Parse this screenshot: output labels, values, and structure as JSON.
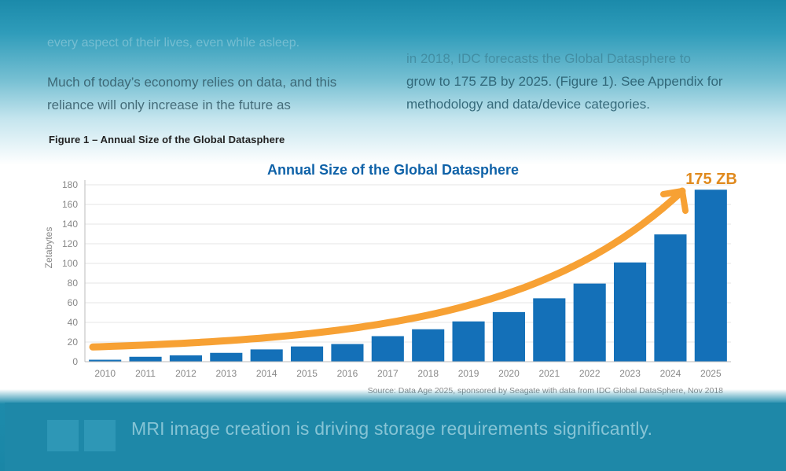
{
  "page": {
    "faded_line": "every aspect of their lives, even while asleep.",
    "left_para": "Much of today’s economy relies on data, and this reliance will only increase in the future as",
    "right_para_dim": "in 2018, IDC forecasts the Global Datasphere to",
    "right_para": "grow to 175 ZB by 2025. (Figure 1). See Appendix for methodology and data/device categories.",
    "figure_caption": "Figure 1 – Annual Size of the Global Datasphere",
    "bottom_text": "MRI image creation is driving storage requirements significantly."
  },
  "chart_data": {
    "type": "bar",
    "title": "Annual Size of the Global Datasphere",
    "ylabel": "Zetabytes",
    "xlabel": "",
    "ylim": [
      0,
      180
    ],
    "yticks": [
      0,
      20,
      40,
      60,
      80,
      100,
      120,
      140,
      160,
      180
    ],
    "grid": true,
    "categories": [
      "2010",
      "2011",
      "2012",
      "2013",
      "2014",
      "2015",
      "2016",
      "2017",
      "2018",
      "2019",
      "2020",
      "2021",
      "2022",
      "2023",
      "2024",
      "2025"
    ],
    "values": [
      2,
      5,
      6.5,
      9,
      12.5,
      15.5,
      18,
      26,
      33,
      41,
      50.5,
      64.5,
      79.5,
      101,
      129.5,
      175
    ],
    "annotation": "175 ZB",
    "source": "Source: Data Age 2025, sponsored by Seagate with data from IDC Global DataSphere, Nov 2018",
    "colors": {
      "bar": "#1470b8",
      "arrow": "#f7a134",
      "annotation": "#e08a1e",
      "title": "#0f62a8",
      "axis_text": "#888888",
      "grid": "#e6e6e6"
    }
  }
}
